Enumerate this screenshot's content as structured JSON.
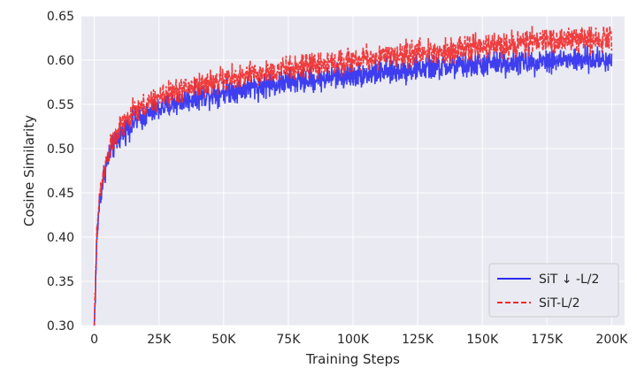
{
  "chart_data": {
    "type": "line",
    "title": "",
    "xlabel": "Training Steps",
    "ylabel": "Cosine Similarity",
    "xlim": [
      -5000,
      205000
    ],
    "ylim": [
      0.3,
      0.65
    ],
    "xticks": [
      0,
      25000,
      50000,
      75000,
      100000,
      125000,
      150000,
      175000,
      200000
    ],
    "xtick_labels": [
      "0",
      "25K",
      "50K",
      "75K",
      "100K",
      "125K",
      "150K",
      "175K",
      "200K"
    ],
    "yticks": [
      0.3,
      0.35,
      0.4,
      0.45,
      0.5,
      0.55,
      0.6,
      0.65
    ],
    "ytick_labels": [
      "0.30",
      "0.35",
      "0.40",
      "0.45",
      "0.50",
      "0.55",
      "0.60",
      "0.65"
    ],
    "grid": true,
    "legend_position": "lower-right",
    "series": [
      {
        "name": "SiT ↓ -L/2",
        "color": "#2b2bf0",
        "style": "solid",
        "noise": 0.007,
        "x": [
          0,
          1000,
          2000,
          4000,
          6000,
          10000,
          15000,
          25000,
          35000,
          50000,
          75000,
          100000,
          125000,
          150000,
          175000,
          200000
        ],
        "y": [
          0.3,
          0.4,
          0.44,
          0.475,
          0.495,
          0.515,
          0.53,
          0.545,
          0.555,
          0.565,
          0.575,
          0.583,
          0.59,
          0.595,
          0.6,
          0.6
        ]
      },
      {
        "name": "SiT-L/2",
        "color": "#f02a2a",
        "style": "dashed",
        "noise": 0.007,
        "x": [
          0,
          1000,
          2000,
          4000,
          6000,
          10000,
          15000,
          25000,
          35000,
          50000,
          75000,
          100000,
          125000,
          150000,
          175000,
          200000
        ],
        "y": [
          0.3,
          0.405,
          0.445,
          0.48,
          0.5,
          0.522,
          0.54,
          0.558,
          0.568,
          0.578,
          0.59,
          0.6,
          0.608,
          0.615,
          0.622,
          0.625
        ]
      }
    ]
  }
}
